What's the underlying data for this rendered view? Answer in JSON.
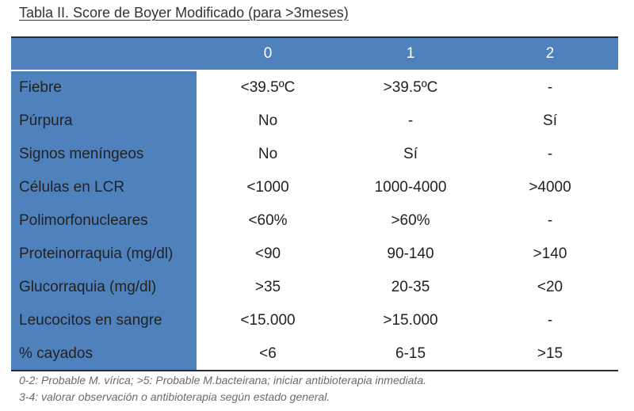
{
  "title": "Tabla II. Score de Boyer Modificado (para >3meses)",
  "table": {
    "headers": [
      "",
      "0",
      "1",
      "2"
    ],
    "rows": [
      {
        "label": "Fiebre",
        "values": [
          "<39.5ºC",
          ">39.5ºC",
          "-"
        ]
      },
      {
        "label": "Púrpura",
        "values": [
          "No",
          "-",
          "Sí"
        ]
      },
      {
        "label": "Signos meníngeos",
        "values": [
          "No",
          "Sí",
          "-"
        ]
      },
      {
        "label": "Células en LCR",
        "values": [
          "<1000",
          "1000-4000",
          ">4000"
        ]
      },
      {
        "label": "Polimorfonucleares",
        "values": [
          "<60%",
          ">60%",
          "-"
        ]
      },
      {
        "label": "Proteinorraquia (mg/dl)",
        "values": [
          "<90",
          "90-140",
          ">140"
        ]
      },
      {
        "label": "Glucorraquia (mg/dl)",
        "values": [
          ">35",
          "20-35",
          "<20"
        ]
      },
      {
        "label": "Leucocitos en sangre",
        "values": [
          "<15.000",
          ">15.000",
          "-"
        ]
      },
      {
        "label": "% cayados",
        "values": [
          "<6",
          "6-15",
          ">15"
        ]
      }
    ]
  },
  "footnotes": [
    "0-2: Probable M. vírica; >5: Probable M.bacteirana; iniciar antibioterapia inmediata.",
    "3-4: valorar observación o antibioterapia según estado general."
  ],
  "colors": {
    "header_band": "#4f81bd",
    "left_band": "#4f81bd",
    "header_text": "#ffffff",
    "body_text": "#222222",
    "footnote_text": "#6b6b6b"
  }
}
